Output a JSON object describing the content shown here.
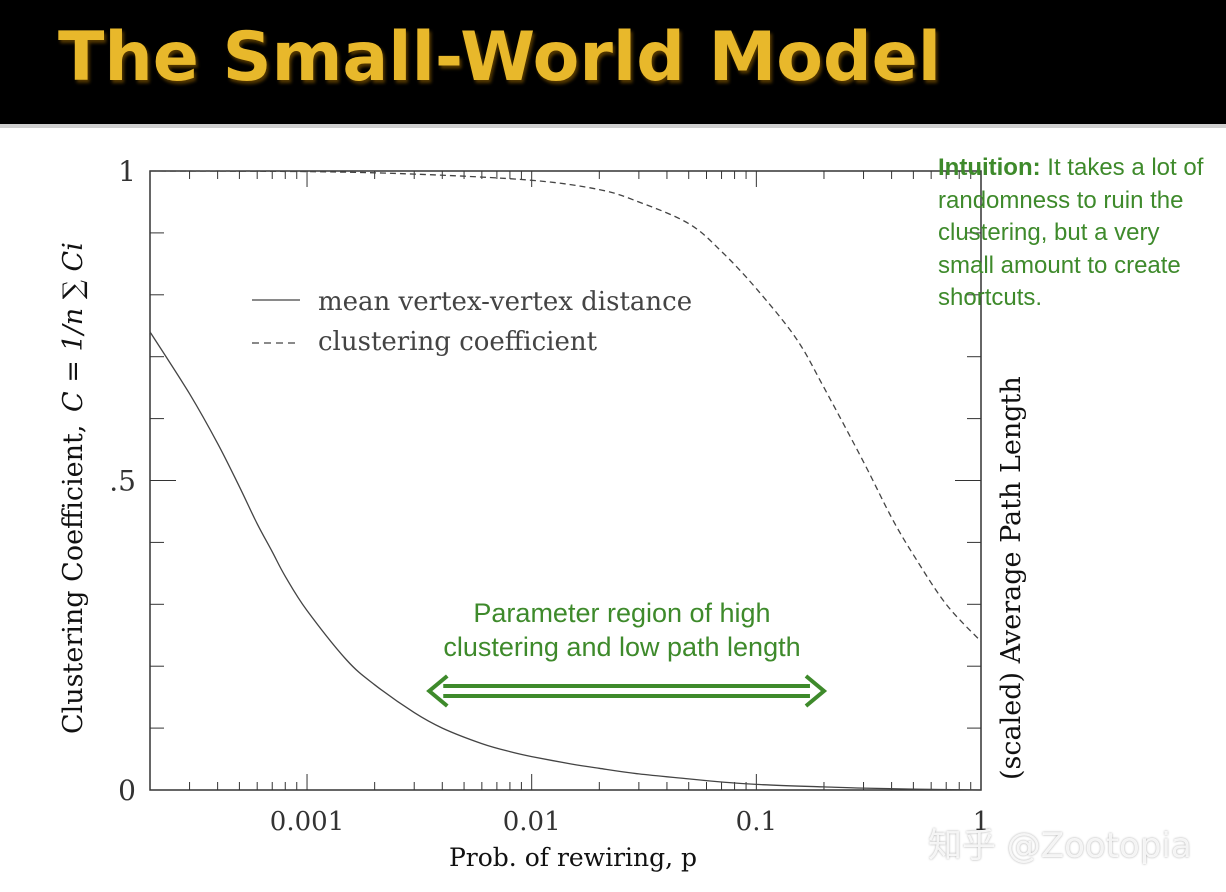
{
  "slide": {
    "title": "The Small-World Model"
  },
  "intuition": {
    "lead": "Intuition:",
    "text": " It takes a lot of randomness to ruin the clustering, but a very small amount to create shortcuts."
  },
  "annotation": {
    "region_line1": "Parameter region of high",
    "region_line2": "clustering and low path length",
    "arrow_from_p": 0.0035,
    "arrow_to_p": 0.2,
    "color": "#3e8a2b"
  },
  "watermark": "知乎 @Zootopia",
  "chart_data": {
    "type": "line",
    "xscale": "log",
    "xlim": [
      0.0002,
      1
    ],
    "ylim": [
      0,
      1
    ],
    "xlabel": "Prob. of rewiring, p",
    "ylabel_left_text": "Clustering Coefficient,",
    "ylabel_left_formula": "C = 1/n ∑ Ci",
    "ylabel_right": "(scaled) Average Path Length",
    "xticks": [
      {
        "value": 0.001,
        "label": "0.001"
      },
      {
        "value": 0.01,
        "label": "0.01"
      },
      {
        "value": 0.1,
        "label": "0.1"
      },
      {
        "value": 1,
        "label": "1"
      }
    ],
    "yticks": [
      {
        "value": 1,
        "label": "1"
      },
      {
        "value": 0.5,
        "label": ".5"
      },
      {
        "value": 0,
        "label": "0"
      }
    ],
    "legend_position": "upper-left",
    "series": [
      {
        "name": "mean vertex-vertex distance",
        "style": "solid",
        "x": [
          0.0002,
          0.0003,
          0.0004,
          0.0005,
          0.0006,
          0.0007,
          0.0008,
          0.001,
          0.0015,
          0.002,
          0.003,
          0.004,
          0.006,
          0.008,
          0.01,
          0.015,
          0.02,
          0.03,
          0.05,
          0.07,
          0.1,
          0.2,
          0.3,
          0.5,
          1
        ],
        "y": [
          0.74,
          0.64,
          0.56,
          0.49,
          0.43,
          0.385,
          0.345,
          0.29,
          0.21,
          0.17,
          0.125,
          0.1,
          0.075,
          0.062,
          0.054,
          0.042,
          0.035,
          0.026,
          0.018,
          0.013,
          0.009,
          0.005,
          0.003,
          0.0015,
          0
        ]
      },
      {
        "name": "clustering coefficient",
        "style": "dashed",
        "x": [
          0.0002,
          0.001,
          0.003,
          0.01,
          0.02,
          0.03,
          0.05,
          0.07,
          0.1,
          0.15,
          0.2,
          0.3,
          0.4,
          0.5,
          0.7,
          1
        ],
        "y": [
          1,
          0.999,
          0.995,
          0.985,
          0.97,
          0.95,
          0.915,
          0.87,
          0.81,
          0.73,
          0.65,
          0.53,
          0.44,
          0.38,
          0.3,
          0.24
        ]
      }
    ]
  }
}
